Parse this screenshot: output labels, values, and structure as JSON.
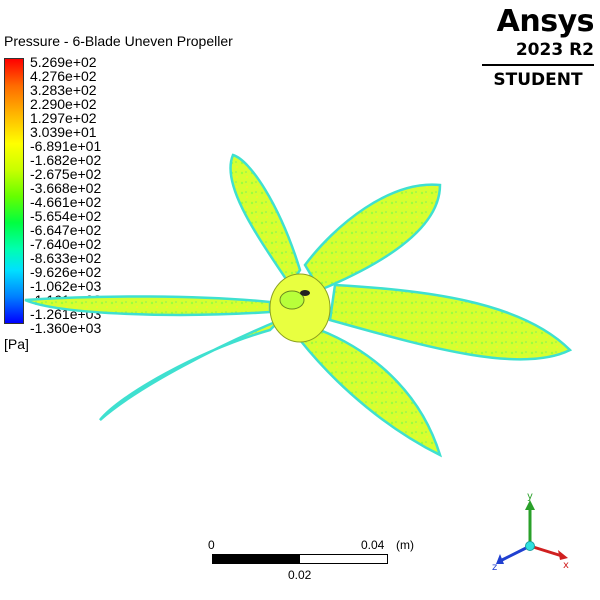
{
  "title": "Pressure - 6-Blade Uneven Propeller",
  "logo": {
    "brand": "Ansys",
    "version": "2023 R2",
    "edition": "STUDENT"
  },
  "legend": {
    "ticks": [
      "5.269e+02",
      "4.276e+02",
      "3.283e+02",
      "2.290e+02",
      "1.297e+02",
      "3.039e+01",
      "-6.891e+01",
      "-1.682e+02",
      "-2.675e+02",
      "-3.668e+02",
      "-4.661e+02",
      "-5.654e+02",
      "-6.647e+02",
      "-7.640e+02",
      "-8.633e+02",
      "-9.626e+02",
      "-1.062e+03",
      "-1.161e+03",
      "-1.261e+03",
      "-1.360e+03"
    ],
    "unit": "[Pa]",
    "colors": {
      "max": "#ff0000",
      "mid": "#ffff00",
      "green": "#00ff40",
      "cyan": "#00e0ff",
      "min": "#0000ff"
    }
  },
  "scale_bar": {
    "start": "0",
    "end": "0.04",
    "unit": "(m)",
    "mid": "0.02"
  },
  "triad": {
    "x": "x",
    "y": "y",
    "z": "z"
  },
  "model": {
    "blade_color": "#d7ff2e",
    "edge_color": "#3fe0d0"
  }
}
